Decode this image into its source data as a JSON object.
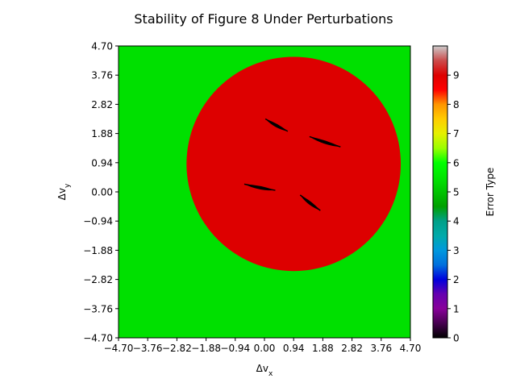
{
  "chart_data": {
    "type": "heatmap",
    "title": "Stability of Figure 8 Under Perturbations",
    "xlabel_main": "Δv",
    "xlabel_sub": "x",
    "ylabel_main": "Δv",
    "ylabel_sub": "y",
    "xlim": [
      -4.7,
      4.7
    ],
    "ylim": [
      -4.7,
      4.7
    ],
    "x_ticks": [
      "−4.70",
      "−3.76",
      "−2.82",
      "−1.88",
      "−0.94",
      "0.00",
      "0.94",
      "1.88",
      "2.82",
      "3.76",
      "4.70"
    ],
    "y_ticks": [
      "−4.70",
      "−3.76",
      "−2.82",
      "−1.88",
      "−0.94",
      "0.00",
      "0.94",
      "1.88",
      "2.82",
      "3.76",
      "4.70"
    ],
    "background_value": 6,
    "region": {
      "shape": "disk",
      "center": [
        0.94,
        0.9
      ],
      "radius": 3.45,
      "value": 9.5
    },
    "stable_islands": [
      {
        "value": 0,
        "from": [
          0.03,
          2.35
        ],
        "to": [
          0.75,
          1.95
        ]
      },
      {
        "value": 0,
        "from": [
          1.45,
          1.78
        ],
        "to": [
          2.45,
          1.45
        ]
      },
      {
        "value": 0,
        "from": [
          -0.65,
          0.25
        ],
        "to": [
          0.35,
          0.05
        ]
      },
      {
        "value": 0,
        "from": [
          1.15,
          -0.1
        ],
        "to": [
          1.8,
          -0.6
        ]
      }
    ],
    "colorbar": {
      "label": "Error Type",
      "colormap": "nipy_spectral",
      "range": [
        0,
        10
      ],
      "ticks": [
        "0",
        "1",
        "2",
        "3",
        "4",
        "5",
        "6",
        "7",
        "8",
        "9"
      ]
    },
    "colors": {
      "stable": "#000000",
      "background": "#00e000",
      "region": "#dd0000",
      "top": "#cccccc"
    }
  }
}
